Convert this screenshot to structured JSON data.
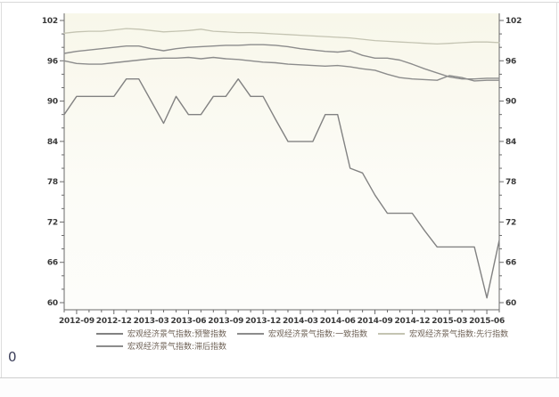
{
  "page": {
    "footer_text": "0"
  },
  "chart_data": {
    "type": "line",
    "title": "",
    "xlabel": "",
    "ylabel": "",
    "ylim": [
      60,
      102
    ],
    "y_ticks": [
      60,
      66,
      72,
      78,
      84,
      90,
      96,
      102
    ],
    "y_minor_step": 2,
    "grid": "off",
    "legend_position": "bottom",
    "x": [
      "2012-08",
      "2012-09",
      "2012-10",
      "2012-11",
      "2012-12",
      "2013-01",
      "2013-02",
      "2013-03",
      "2013-04",
      "2013-05",
      "2013-06",
      "2013-07",
      "2013-08",
      "2013-09",
      "2013-10",
      "2013-11",
      "2013-12",
      "2014-01",
      "2014-02",
      "2014-03",
      "2014-04",
      "2014-05",
      "2014-06",
      "2014-07",
      "2014-08",
      "2014-09",
      "2014-10",
      "2014-11",
      "2014-12",
      "2015-01",
      "2015-02",
      "2015-03",
      "2015-04",
      "2015-05",
      "2015-06",
      "2015-07"
    ],
    "x_tick_labels": [
      "2012-09",
      "2012-12",
      "2013-03",
      "2013-06",
      "2013-09",
      "2013-12",
      "2014-03",
      "2014-06",
      "2014-09",
      "2014-12",
      "2015-03",
      "2015-06"
    ],
    "series": [
      {
        "key": "warning-index",
        "name": "宏观经济景气指数:预警指数",
        "color": "#828282",
        "width": 1.4,
        "values": [
          88.0,
          90.7,
          90.7,
          90.7,
          90.7,
          93.3,
          93.3,
          90.0,
          86.7,
          90.7,
          88.0,
          88.0,
          90.7,
          90.7,
          93.3,
          90.7,
          90.7,
          87.3,
          84.0,
          84.0,
          84.0,
          88.0,
          88.0,
          80.0,
          79.3,
          76.0,
          73.3,
          73.3,
          73.3,
          70.7,
          68.3,
          68.3,
          68.3,
          68.3,
          60.7,
          69.3
        ]
      },
      {
        "key": "coincident-index",
        "name": "宏观经济景气指数:一致指数",
        "color": "#8c8c8c",
        "width": 1.4,
        "values": [
          97.1,
          97.4,
          97.6,
          97.8,
          98.0,
          98.2,
          98.2,
          97.8,
          97.5,
          97.8,
          98.0,
          98.1,
          98.2,
          98.3,
          98.3,
          98.4,
          98.4,
          98.3,
          98.1,
          97.8,
          97.6,
          97.4,
          97.3,
          97.5,
          96.8,
          96.4,
          96.4,
          96.1,
          95.5,
          94.8,
          94.2,
          93.6,
          93.3,
          93.3,
          93.4,
          93.4
        ]
      },
      {
        "key": "leading-index",
        "name": "宏观经济景气指数:先行指数",
        "color": "#c4c4b2",
        "width": 1.3,
        "values": [
          100.1,
          100.3,
          100.4,
          100.4,
          100.6,
          100.8,
          100.7,
          100.5,
          100.3,
          100.4,
          100.5,
          100.7,
          100.4,
          100.3,
          100.2,
          100.2,
          100.1,
          100.0,
          99.9,
          99.8,
          99.7,
          99.6,
          99.5,
          99.4,
          99.2,
          99.0,
          98.9,
          98.8,
          98.7,
          98.6,
          98.5,
          98.6,
          98.7,
          98.8,
          98.8,
          98.7
        ]
      },
      {
        "key": "lagging-index",
        "name": "宏观经济景气指数:滞后指数",
        "color": "#8c8c8c",
        "width": 1.4,
        "values": [
          96.0,
          95.6,
          95.5,
          95.5,
          95.7,
          95.9,
          96.1,
          96.3,
          96.4,
          96.4,
          96.5,
          96.3,
          96.5,
          96.3,
          96.2,
          96.0,
          95.8,
          95.7,
          95.5,
          95.4,
          95.3,
          95.2,
          95.3,
          95.1,
          94.8,
          94.6,
          94.0,
          93.5,
          93.3,
          93.2,
          93.1,
          93.8,
          93.5,
          93.0,
          93.1,
          93.1
        ]
      }
    ]
  }
}
